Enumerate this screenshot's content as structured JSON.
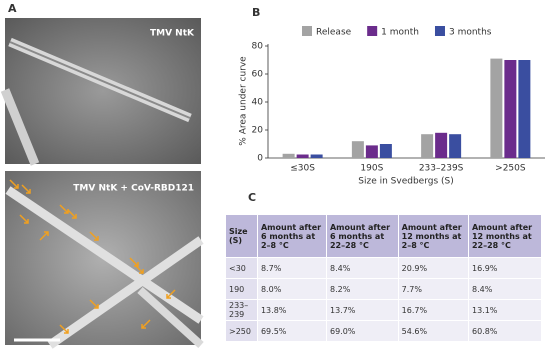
{
  "panels": {
    "a": "A",
    "b": "B",
    "c": "C"
  },
  "images": {
    "top_label": "TMV NtK",
    "bottom_label": "TMV NtK + CoV-RBD121"
  },
  "chart_data": {
    "type": "bar",
    "ylabel": "% Area under curve",
    "xlabel": "Size in Svedbergs (S)",
    "categories": [
      "≤30S",
      "190S",
      "233–239S",
      ">250S"
    ],
    "series": [
      {
        "name": "Release",
        "color": "#a3a3a3",
        "values": [
          3,
          12,
          17,
          71
        ]
      },
      {
        "name": "1 month",
        "color": "#6b2c8c",
        "values": [
          2.5,
          9,
          18,
          70
        ]
      },
      {
        "name": "3 months",
        "color": "#3a4ea0",
        "values": [
          2.5,
          10,
          17,
          70
        ]
      }
    ],
    "ylim": [
      0,
      80
    ],
    "yticks": [
      0,
      20,
      40,
      60,
      80
    ]
  },
  "table": {
    "header": [
      "Size (S)",
      "Amount after 6 months at 2–8 °C",
      "Amount after 6 months at 22–28 °C",
      "Amount after 12 months at 2–8 °C",
      "Amount after 12 months at 22–28 °C"
    ],
    "rows": [
      [
        "<30",
        "8.7%",
        "8.4%",
        "20.9%",
        "16.9%"
      ],
      [
        "190",
        "8.0%",
        "8.2%",
        "7.7%",
        "8.4%"
      ],
      [
        "233–239",
        "13.8%",
        "13.7%",
        "16.7%",
        "13.1%"
      ],
      [
        ">250",
        "69.5%",
        "69.0%",
        "54.6%",
        "60.8%"
      ]
    ]
  }
}
